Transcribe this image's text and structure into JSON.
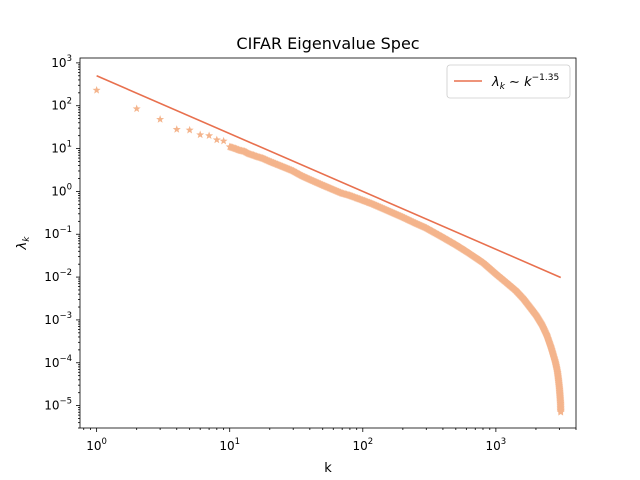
{
  "chart_data": {
    "type": "scatter",
    "title": "CIFAR Eigenvalue Spec",
    "xlabel": "k",
    "ylabel": "λ_k",
    "x_scale": "log",
    "y_scale": "log",
    "xlim": [
      0.75,
      4000
    ],
    "ylim": [
      3e-06,
      1300
    ],
    "grid": false,
    "legend_position": "top-right",
    "x_ticks": [
      {
        "value": 1,
        "base": "10",
        "exp": "0"
      },
      {
        "value": 10,
        "base": "10",
        "exp": "1"
      },
      {
        "value": 100,
        "base": "10",
        "exp": "2"
      },
      {
        "value": 1000,
        "base": "10",
        "exp": "3"
      }
    ],
    "y_ticks": [
      {
        "value": 1e-05,
        "base": "10",
        "exp": "−5"
      },
      {
        "value": 0.0001,
        "base": "10",
        "exp": "−4"
      },
      {
        "value": 0.001,
        "base": "10",
        "exp": "−3"
      },
      {
        "value": 0.01,
        "base": "10",
        "exp": "−2"
      },
      {
        "value": 0.1,
        "base": "10",
        "exp": "−1"
      },
      {
        "value": 1,
        "base": "10",
        "exp": "0"
      },
      {
        "value": 10,
        "base": "10",
        "exp": "1"
      },
      {
        "value": 100,
        "base": "10",
        "exp": "2"
      },
      {
        "value": 1000,
        "base": "10",
        "exp": "3"
      }
    ],
    "series": [
      {
        "name": "",
        "kind": "scatter",
        "marker": "star",
        "color": "#f4b48c",
        "points": [
          [
            1,
            230
          ],
          [
            2,
            85
          ],
          [
            3,
            48
          ],
          [
            4,
            28
          ],
          [
            5,
            27
          ],
          [
            6,
            21
          ],
          [
            7,
            20
          ],
          [
            8,
            16
          ],
          [
            9,
            15
          ],
          [
            10,
            11
          ],
          [
            11,
            10
          ],
          [
            12,
            9
          ],
          [
            13,
            8.5
          ],
          [
            14,
            7.5
          ],
          [
            15,
            7
          ],
          [
            16,
            6.5
          ],
          [
            18,
            5.8
          ],
          [
            20,
            5.0
          ],
          [
            23,
            4.2
          ],
          [
            26,
            3.6
          ],
          [
            30,
            3.0
          ],
          [
            35,
            2.3
          ],
          [
            40,
            1.9
          ],
          [
            50,
            1.4
          ],
          [
            60,
            1.1
          ],
          [
            70,
            0.9
          ],
          [
            80,
            0.8
          ],
          [
            100,
            0.62
          ],
          [
            120,
            0.5
          ],
          [
            150,
            0.37
          ],
          [
            200,
            0.25
          ],
          [
            250,
            0.18
          ],
          [
            300,
            0.14
          ],
          [
            400,
            0.085
          ],
          [
            500,
            0.057
          ],
          [
            600,
            0.04
          ],
          [
            700,
            0.029
          ],
          [
            800,
            0.022
          ],
          [
            1000,
            0.012
          ],
          [
            1200,
            0.0075
          ],
          [
            1400,
            0.005
          ],
          [
            1600,
            0.0032
          ],
          [
            1800,
            0.002
          ],
          [
            2000,
            0.0013
          ],
          [
            2200,
            0.0008
          ],
          [
            2400,
            0.00045
          ],
          [
            2600,
            0.00022
          ],
          [
            2800,
            0.0001
          ],
          [
            2900,
            6e-05
          ],
          [
            2950,
            4e-05
          ],
          [
            3000,
            2.5e-05
          ],
          [
            3030,
            1.7e-05
          ],
          [
            3060,
            1.1e-05
          ],
          [
            3072,
            7e-06
          ]
        ]
      },
      {
        "name": "λ_k ~ k^(−1.35)",
        "kind": "line",
        "color": "#e8704e",
        "points": [
          [
            1,
            500
          ],
          [
            3072,
            0.0098
          ]
        ]
      }
    ],
    "legend": {
      "lambda": "λ",
      "sub": "k",
      "tilde": " ∼ ",
      "k": "k",
      "exponent": "−1.35"
    }
  }
}
